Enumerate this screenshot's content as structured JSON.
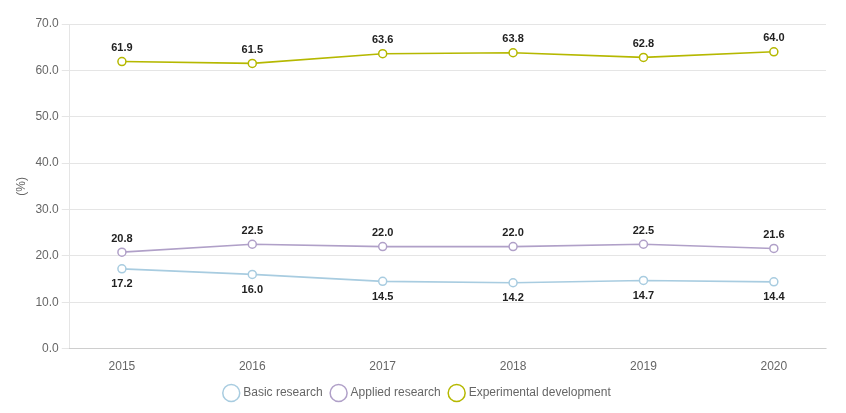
{
  "chart_data": {
    "type": "line",
    "ylabel": "(%)",
    "x": [
      2015,
      2016,
      2017,
      2018,
      2019,
      2020
    ],
    "xlim": [
      2014.6,
      2020.4
    ],
    "xticks": [
      2015,
      2016,
      2017,
      2018,
      2019,
      2020
    ],
    "ylim": [
      0,
      70.0
    ],
    "yticks": [
      {
        "value": 0,
        "label": "0.0"
      },
      {
        "value": 10,
        "label": "10.0"
      },
      {
        "value": 20,
        "label": "20.0"
      },
      {
        "value": 30,
        "label": "30.0"
      },
      {
        "value": 40,
        "label": "40.0"
      },
      {
        "value": 50,
        "label": "50.0"
      },
      {
        "value": 60,
        "label": "60.0"
      },
      {
        "value": 70,
        "label": "70.0"
      }
    ],
    "grid": "y",
    "legend": "bottom",
    "data_labels": true,
    "marker": "circle",
    "series": [
      {
        "name": "Basic research",
        "color": "#a8cce0",
        "values": [
          17.2,
          16.0,
          14.5,
          14.2,
          14.7,
          14.4
        ],
        "value_labels": [
          "17.2",
          "16.0",
          "14.5",
          "14.2",
          "14.7",
          "14.4"
        ]
      },
      {
        "name": "Applied research",
        "color": "#b0a0c8",
        "values": [
          20.8,
          22.5,
          22.0,
          22.0,
          22.5,
          21.6
        ],
        "value_labels": [
          "20.8",
          "22.5",
          "22.0",
          "22.0",
          "22.5",
          "21.6"
        ]
      },
      {
        "name": "Experimental development",
        "color": "#b5b800",
        "values": [
          61.9,
          61.5,
          63.6,
          63.8,
          62.8,
          64.0
        ],
        "value_labels": [
          "61.9",
          "61.5",
          "63.6",
          "63.8",
          "62.8",
          "64.0"
        ]
      }
    ]
  }
}
